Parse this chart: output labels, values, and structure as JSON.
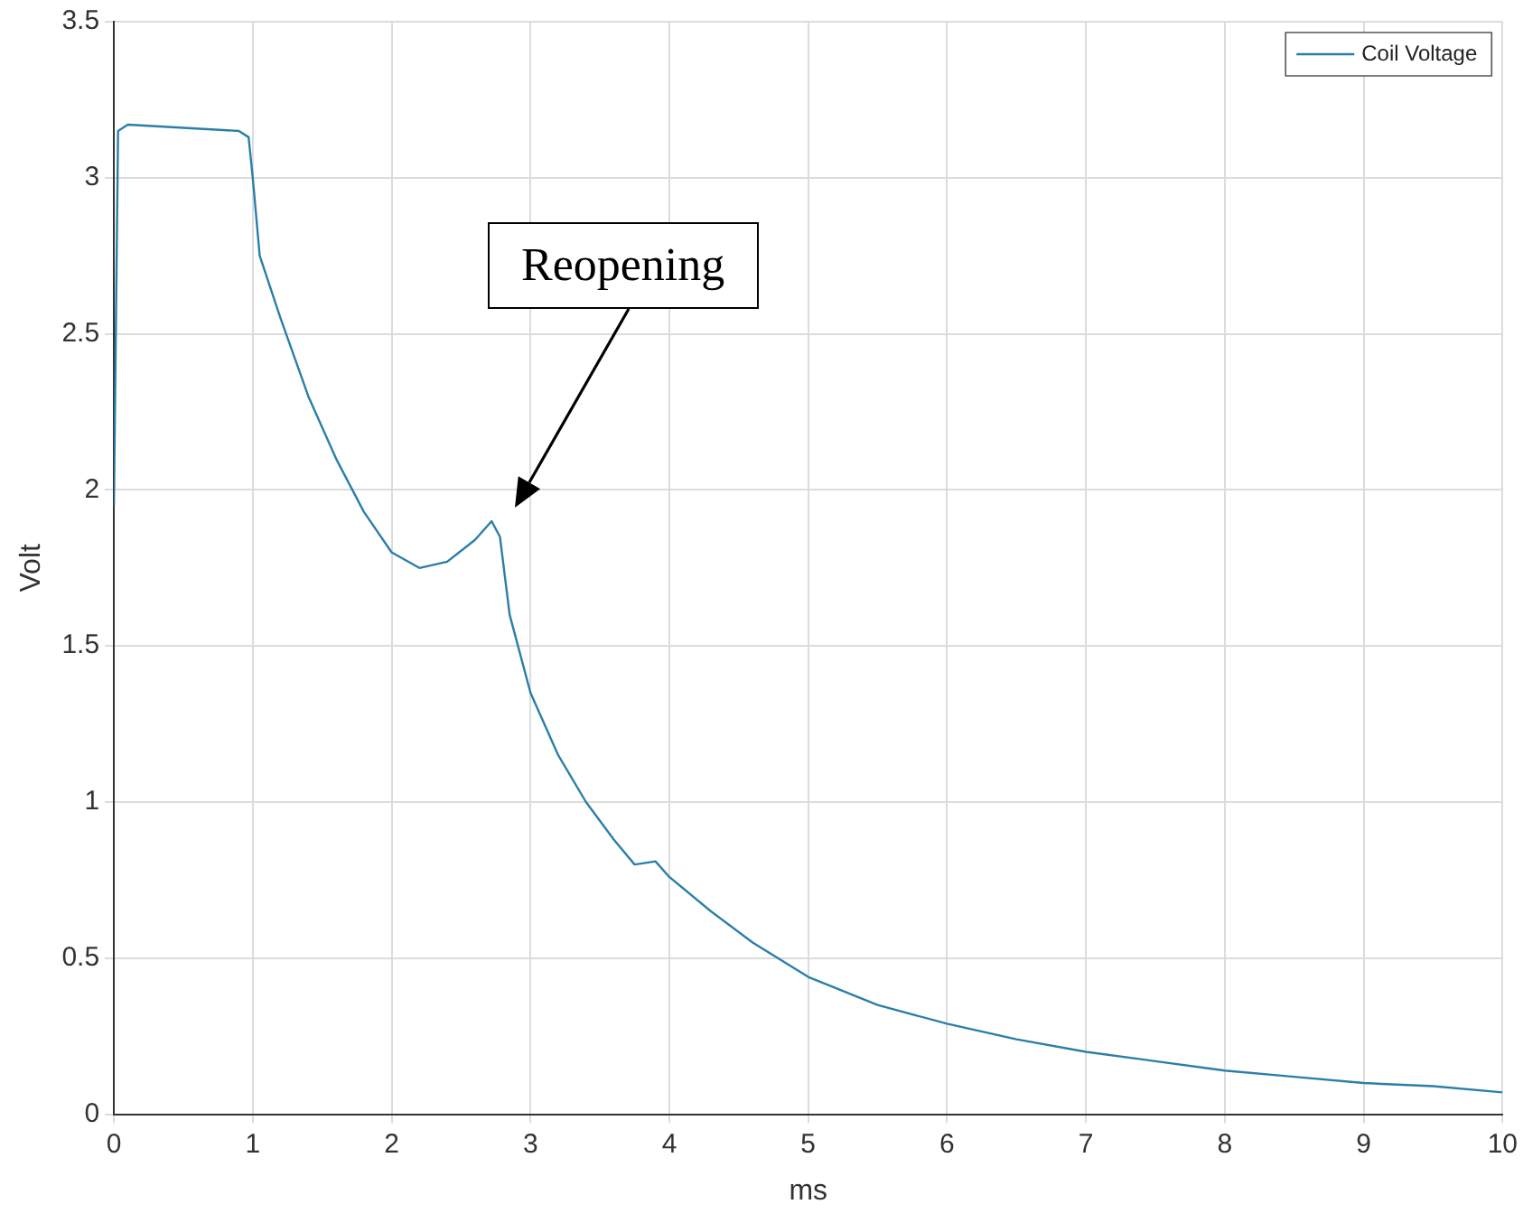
{
  "chart_data": {
    "type": "line",
    "xlabel": "ms",
    "ylabel": "Volt",
    "xlim": [
      0,
      10
    ],
    "xticks": [
      0,
      1,
      2,
      3,
      4,
      5,
      6,
      7,
      8,
      9,
      10
    ],
    "ylim": [
      0,
      3.5
    ],
    "yticks": [
      0,
      0.5,
      1,
      1.5,
      2,
      2.5,
      3,
      3.5
    ],
    "grid": true,
    "legend": "top right",
    "marker": "none",
    "line_style": "solid",
    "annotations": [
      "Reopening"
    ],
    "series": [
      {
        "name": "Coil Voltage",
        "color": "#2a7fa8",
        "x": [
          0,
          0.03,
          0.1,
          0.5,
          0.9,
          0.97,
          1.0,
          1.05,
          1.2,
          1.4,
          1.6,
          1.8,
          2.0,
          2.2,
          2.4,
          2.6,
          2.72,
          2.78,
          2.85,
          3.0,
          3.2,
          3.4,
          3.6,
          3.75,
          3.9,
          4.0,
          4.3,
          4.6,
          5.0,
          5.5,
          6.0,
          6.5,
          7.0,
          7.5,
          8.0,
          8.5,
          9.0,
          9.5,
          10
        ],
        "values": [
          1.95,
          3.15,
          3.17,
          3.16,
          3.15,
          3.13,
          3.0,
          2.75,
          2.55,
          2.3,
          2.1,
          1.93,
          1.8,
          1.75,
          1.77,
          1.84,
          1.9,
          1.85,
          1.6,
          1.35,
          1.15,
          1.0,
          0.88,
          0.8,
          0.81,
          0.76,
          0.65,
          0.55,
          0.44,
          0.35,
          0.29,
          0.24,
          0.2,
          0.17,
          0.14,
          0.12,
          0.1,
          0.09,
          0.07
        ]
      }
    ]
  }
}
